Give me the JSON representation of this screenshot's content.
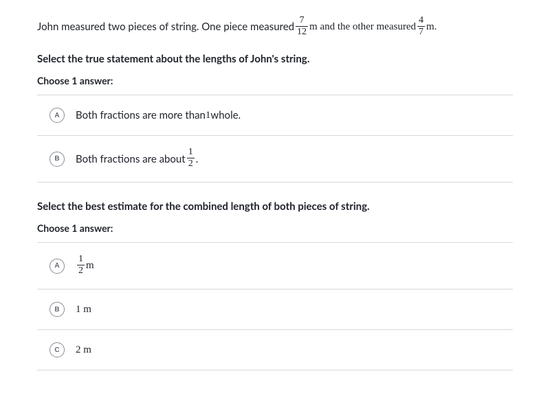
{
  "intro": {
    "seg1": "John measured two pieces of string. One piece measured ",
    "frac1": {
      "num": "7",
      "den": "12"
    },
    "seg2": " m and the other measured ",
    "frac2": {
      "num": "4",
      "den": "7"
    },
    "seg3": " m."
  },
  "q1": {
    "prompt": "Select the true statement about the lengths of John's string.",
    "choose": "Choose 1 answer:",
    "options": {
      "A": {
        "letter": "A",
        "text_pre": "Both fractions are more than ",
        "whole": "1",
        "text_post": " whole."
      },
      "B": {
        "letter": "B",
        "text_pre": "Both fractions are about ",
        "frac": {
          "num": "1",
          "den": "2"
        },
        "text_post": "."
      }
    }
  },
  "q2": {
    "prompt": "Select the best estimate for the combined length of both pieces of string.",
    "choose": "Choose 1 answer:",
    "options": {
      "A": {
        "letter": "A",
        "frac": {
          "num": "1",
          "den": "2"
        },
        "unit": " m"
      },
      "B": {
        "letter": "B",
        "text": "1 m"
      },
      "C": {
        "letter": "C",
        "text": "2 m"
      }
    }
  },
  "colors": {
    "text": "#21242c",
    "border": "#d6d8da",
    "radio_border": "#888c92"
  }
}
